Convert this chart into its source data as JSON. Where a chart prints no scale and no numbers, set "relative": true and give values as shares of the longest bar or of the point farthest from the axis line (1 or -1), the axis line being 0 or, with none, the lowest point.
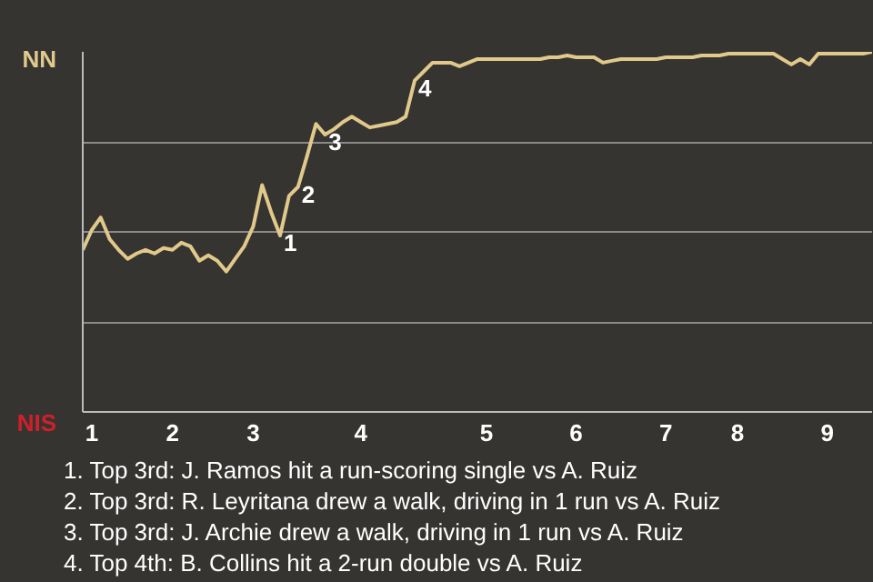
{
  "chart_data": {
    "type": "line",
    "relative": true,
    "categories": [
      null,
      "1",
      null,
      null,
      null,
      null,
      null,
      null,
      null,
      null,
      "2",
      null,
      null,
      null,
      null,
      null,
      null,
      null,
      null,
      "3",
      null,
      null,
      null,
      null,
      null,
      null,
      null,
      null,
      null,
      null,
      null,
      "4",
      null,
      null,
      null,
      null,
      null,
      null,
      null,
      null,
      null,
      null,
      null,
      null,
      null,
      "5",
      null,
      null,
      null,
      null,
      null,
      null,
      null,
      null,
      null,
      "6",
      null,
      null,
      null,
      null,
      null,
      null,
      null,
      null,
      null,
      "7",
      null,
      null,
      null,
      null,
      null,
      null,
      null,
      "8",
      null,
      null,
      null,
      null,
      null,
      null,
      null,
      null,
      null,
      "9",
      null,
      null,
      null,
      null,
      null
    ],
    "series": [
      {
        "color": "#e0c98a",
        "values": [
          0.45,
          0.505,
          0.54,
          0.48,
          0.45,
          0.425,
          0.44,
          0.45,
          0.44,
          0.455,
          0.45,
          0.47,
          0.46,
          0.42,
          0.435,
          0.42,
          0.39,
          0.425,
          0.46,
          0.515,
          0.63,
          0.555,
          0.49,
          0.6,
          0.625,
          0.71,
          0.8,
          0.77,
          0.785,
          0.805,
          0.82,
          0.805,
          0.79,
          0.795,
          0.8,
          0.805,
          0.82,
          0.92,
          0.945,
          0.97,
          0.97,
          0.97,
          0.96,
          0.97,
          0.98,
          0.98,
          0.98,
          0.98,
          0.98,
          0.98,
          0.98,
          0.98,
          0.985,
          0.985,
          0.99,
          0.985,
          0.985,
          0.985,
          0.97,
          0.975,
          0.98,
          0.98,
          0.98,
          0.98,
          0.98,
          0.985,
          0.985,
          0.985,
          0.985,
          0.99,
          0.99,
          0.99,
          0.995,
          0.995,
          0.995,
          0.995,
          0.995,
          0.995,
          0.98,
          0.965,
          0.98,
          0.965,
          0.995,
          0.995,
          0.995,
          0.995,
          0.995,
          0.995,
          1
        ]
      }
    ],
    "grid": "y",
    "annotations": [
      "NN",
      "NIS",
      {
        "text": "1",
        "y": 0.49
      },
      {
        "text": "2",
        "y": 0.625
      },
      {
        "text": "3",
        "y": 0.77
      },
      {
        "text": "4",
        "y": 0.92
      },
      "1. Top 3rd: J. Ramos hit a run-scoring single vs A. Ruiz",
      "2. Top 3rd: R. Leyritana drew a walk, driving in 1 run vs A. Ruiz",
      "3. Top 3rd: J. Archie drew a walk, driving in 1 run vs A. Ruiz",
      "4. Top 4th: B. Collins hit a 2-run double vs A. Ruiz"
    ]
  }
}
